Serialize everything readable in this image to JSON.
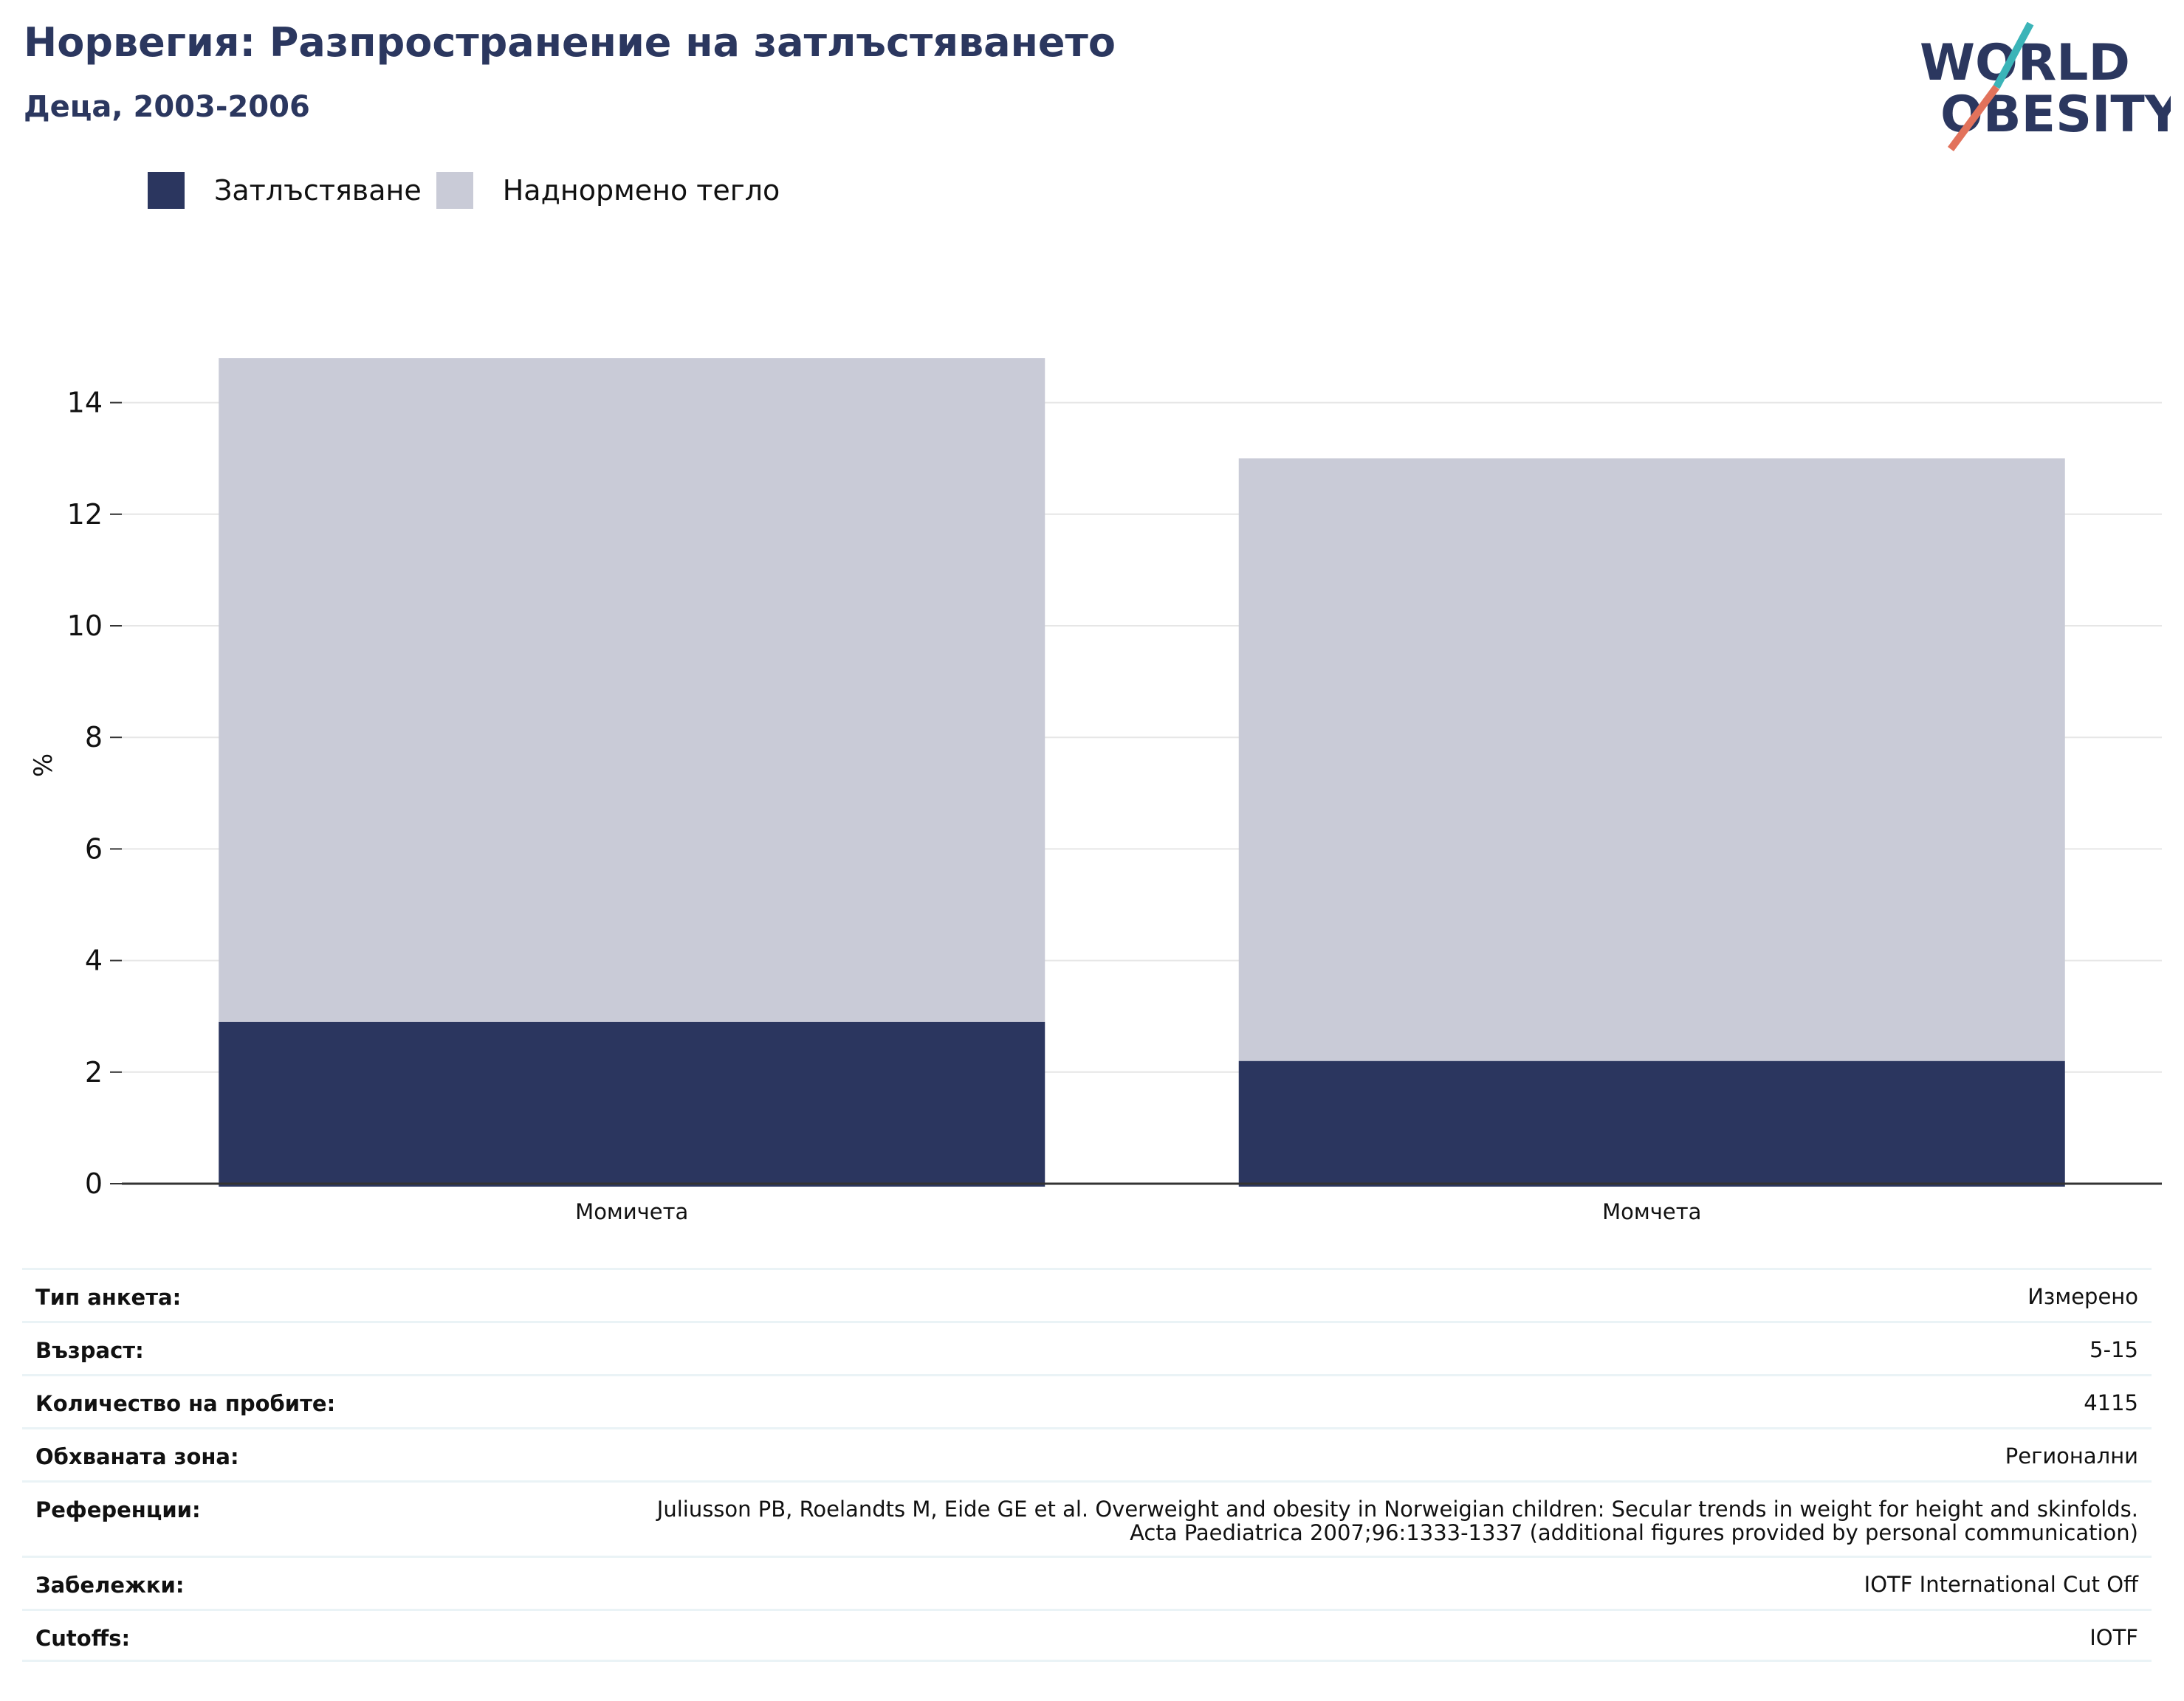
{
  "header": {
    "title": "Норвегия: Разпространение на затлъстяването",
    "subtitle": "Деца, 2003-2006"
  },
  "logo": {
    "line1": "WORLD",
    "line2": "OBESITY",
    "colors": {
      "text": "#2b375f",
      "slash_top": "#3bb4b8",
      "slash_bottom": "#e2725b"
    }
  },
  "legend": [
    {
      "label": "Затлъстяване",
      "color": "#2b365f"
    },
    {
      "label": "Наднормено тегло",
      "color": "#c9cbd7"
    }
  ],
  "chart_data": {
    "type": "bar",
    "stacked": true,
    "categories": [
      "Момичета",
      "Момчета"
    ],
    "series": [
      {
        "name": "Затлъстяване",
        "values": [
          2.9,
          2.2
        ],
        "color": "#2b365f"
      },
      {
        "name": "Наднормено тегло",
        "values": [
          11.9,
          10.8
        ],
        "color": "#c9cbd7"
      }
    ],
    "ylabel": "%",
    "ylim": [
      0,
      15
    ],
    "yticks": [
      0,
      2,
      4,
      6,
      8,
      10,
      12,
      14
    ],
    "grid": true,
    "legend_position": "top-left"
  },
  "info": [
    {
      "label": "Тип анкета:",
      "value": "Измерено"
    },
    {
      "label": "Възраст:",
      "value": "5-15"
    },
    {
      "label": "Количество на пробите:",
      "value": "4115"
    },
    {
      "label": "Обхваната зона:",
      "value": "Регионални"
    },
    {
      "label": "Референции:",
      "value": "Juliusson PB, Roelandts M, Eide GE et al. Overweight and obesity in Norweigian children: Secular trends in weight for height and skinfolds.\nActa Paediatrica 2007;96:1333-1337 (additional figures provided by personal communication)"
    },
    {
      "label": "Забележки:",
      "value": "IOTF International Cut Off"
    },
    {
      "label": "Cutoffs:",
      "value": "IOTF"
    }
  ]
}
